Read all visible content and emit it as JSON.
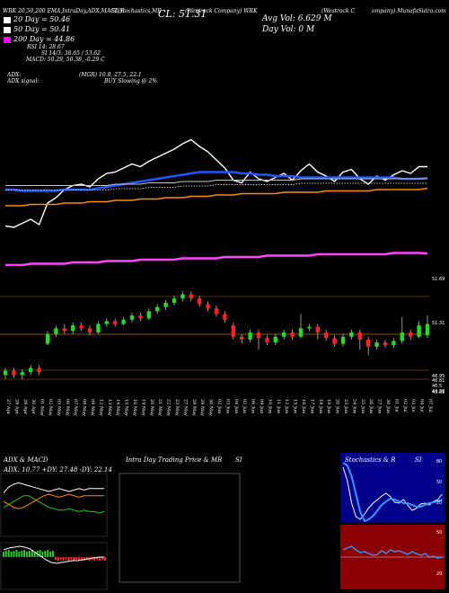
{
  "header": {
    "line1": "WRK 20,50,200 EMA,IntraDay,ADX,MACD,R",
    "line1b": "SI,Stochastics,MR",
    "ticker": "(Westrock Company) WRK",
    "close_label": "CL: 51.31",
    "company": "(Westrock C",
    "company_b": "ompany) MunafaSutra.com",
    "avg_vol": "Avg Vol: 6.629 M",
    "day_vol": "Day Vol: 0   M"
  },
  "legend": [
    {
      "label": "20  Day = 50.46",
      "color": "#ffffff"
    },
    {
      "label": "50  Day = 50.41",
      "color": "#ffffff"
    },
    {
      "label": "200  Day = 44.86",
      "color": "#ff00ff"
    }
  ],
  "stats": {
    "rsi_label": "RSI 14: 28.67",
    "stoch_label": "SI 14/3: 38.65 / 53.62",
    "macd_label": "MACD: 50.29, 50.38, -0.29  C",
    "adx_label": "ADX:",
    "adx_signal_label": "ADX  signal:",
    "mgr_label": "(MGR) 10.8,  27.5,  22.1",
    "buy_label": "BUY Slowing @ 2%"
  },
  "chart_data": {
    "type": "line",
    "title": "WRK 20,50,200 EMA,IntraDay,ADX,MACD,RSI,Stochastics,MRSI",
    "x": [
      "27 Apr",
      "28 Apr",
      "29 Apr",
      "30 Apr",
      "01 May",
      "02 May",
      "05 May",
      "06 May",
      "07 May",
      "08 May",
      "09 May",
      "12 May",
      "13 May",
      "14 May",
      "15 May",
      "16 May",
      "19 May",
      "20 May",
      "21 May",
      "22 May",
      "23 May",
      "27 May",
      "28 May",
      "29 May",
      "30 May",
      "02 Jun",
      "03 Jun",
      "04 Jun",
      "05 Jun",
      "06 Jun",
      "09 Jun",
      "10 Jun",
      "11 Jun",
      "12 Jun",
      "13 Jun",
      "16 Jun",
      "17 Jun",
      "18 Jun",
      "19 Jun",
      "20 Jun",
      "23 Jun",
      "24 Jun",
      "25 Jun",
      "26 Jun",
      "27 Jun",
      "30 Jun",
      "01 Jul",
      "02 Jul",
      "03 Jul",
      "04 Jul",
      "07 Jul"
    ],
    "series": [
      {
        "name": "Close",
        "values": [
          46.9,
          46.8,
          47.1,
          47.4,
          47.0,
          48.6,
          49.0,
          49.6,
          49.9,
          50.0,
          49.8,
          50.4,
          50.8,
          50.9,
          51.2,
          51.5,
          51.3,
          51.7,
          52.0,
          52.3,
          52.6,
          53.0,
          53.3,
          52.8,
          52.4,
          51.8,
          51.2,
          50.3,
          50.1,
          50.9,
          50.4,
          50.2,
          50.5,
          50.8,
          50.3,
          51.0,
          51.5,
          50.9,
          50.6,
          50.2,
          50.9,
          51.1,
          50.4,
          50.0,
          50.6,
          50.3,
          50.7,
          51.0,
          50.8,
          51.3,
          51.3
        ]
      },
      {
        "name": "20 Day",
        "values": [
          49.6,
          49.6,
          49.5,
          49.5,
          49.5,
          49.5,
          49.5,
          49.6,
          49.6,
          49.6,
          49.6,
          49.7,
          49.8,
          49.9,
          50.0,
          50.1,
          50.2,
          50.3,
          50.4,
          50.5,
          50.6,
          50.7,
          50.8,
          50.9,
          50.9,
          50.9,
          50.9,
          50.9,
          50.8,
          50.8,
          50.7,
          50.7,
          50.6,
          50.6,
          50.6,
          50.5,
          50.5,
          50.5,
          50.5,
          50.5,
          50.5,
          50.5,
          50.5,
          50.5,
          50.5,
          50.5,
          50.5,
          50.4,
          50.4,
          50.4,
          50.46
        ]
      },
      {
        "name": "50 Day",
        "values": [
          49.9,
          49.9,
          49.9,
          49.9,
          49.9,
          49.9,
          49.9,
          49.9,
          49.9,
          49.9,
          49.9,
          49.9,
          49.9,
          50.0,
          50.0,
          50.0,
          50.0,
          50.1,
          50.1,
          50.1,
          50.1,
          50.2,
          50.2,
          50.2,
          50.2,
          50.3,
          50.3,
          50.3,
          50.3,
          50.3,
          50.3,
          50.3,
          50.3,
          50.3,
          50.3,
          50.4,
          50.4,
          50.4,
          50.4,
          50.4,
          50.4,
          50.4,
          50.4,
          50.4,
          50.4,
          50.4,
          50.4,
          50.4,
          50.4,
          50.4,
          50.41
        ]
      },
      {
        "name": "100 Day",
        "values": [
          48.4,
          48.4,
          48.4,
          48.5,
          48.5,
          48.5,
          48.5,
          48.6,
          48.6,
          48.6,
          48.7,
          48.7,
          48.7,
          48.8,
          48.8,
          48.8,
          48.9,
          48.9,
          48.9,
          49.0,
          49.0,
          49.0,
          49.1,
          49.1,
          49.1,
          49.2,
          49.2,
          49.2,
          49.3,
          49.3,
          49.3,
          49.3,
          49.3,
          49.4,
          49.4,
          49.4,
          49.4,
          49.4,
          49.5,
          49.5,
          49.5,
          49.5,
          49.5,
          49.5,
          49.6,
          49.6,
          49.6,
          49.6,
          49.6,
          49.6,
          49.7
        ]
      },
      {
        "name": "200 Day",
        "values": [
          44.0,
          44.0,
          44.0,
          44.1,
          44.1,
          44.1,
          44.1,
          44.1,
          44.2,
          44.2,
          44.2,
          44.2,
          44.3,
          44.3,
          44.3,
          44.3,
          44.4,
          44.4,
          44.4,
          44.4,
          44.4,
          44.5,
          44.5,
          44.5,
          44.5,
          44.5,
          44.6,
          44.6,
          44.6,
          44.6,
          44.6,
          44.7,
          44.7,
          44.7,
          44.7,
          44.7,
          44.7,
          44.8,
          44.8,
          44.8,
          44.8,
          44.8,
          44.8,
          44.8,
          44.8,
          44.8,
          44.9,
          44.9,
          44.9,
          44.9,
          44.86
        ]
      }
    ],
    "ylim": [
      43.0,
      55.0
    ],
    "candles": [
      [
        46.3,
        46.6,
        46.0,
        46.8
      ],
      [
        46.6,
        46.3,
        46.1,
        46.8
      ],
      [
        46.3,
        46.5,
        46.0,
        46.7
      ],
      [
        46.5,
        46.8,
        46.3,
        47.0
      ],
      [
        46.8,
        46.5,
        46.3,
        47.0
      ],
      [
        48.5,
        49.2,
        48.4,
        49.4
      ],
      [
        49.2,
        49.6,
        49.0,
        49.8
      ],
      [
        49.6,
        49.4,
        49.2,
        49.9
      ],
      [
        49.4,
        49.8,
        49.2,
        50.0
      ],
      [
        49.8,
        49.6,
        49.4,
        50.0
      ],
      [
        49.6,
        49.3,
        49.1,
        49.8
      ],
      [
        49.3,
        49.9,
        49.2,
        50.1
      ],
      [
        49.9,
        50.1,
        49.7,
        50.3
      ],
      [
        50.1,
        49.9,
        49.7,
        50.3
      ],
      [
        49.9,
        50.2,
        49.8,
        50.4
      ],
      [
        50.2,
        50.5,
        50.0,
        50.7
      ],
      [
        50.5,
        50.3,
        50.1,
        50.7
      ],
      [
        50.3,
        50.8,
        50.2,
        51.0
      ],
      [
        50.8,
        51.1,
        50.6,
        51.3
      ],
      [
        51.1,
        51.4,
        50.9,
        51.6
      ],
      [
        51.4,
        51.7,
        51.2,
        51.9
      ],
      [
        51.7,
        52.0,
        51.5,
        52.2
      ],
      [
        52.0,
        51.7,
        51.5,
        52.2
      ],
      [
        51.7,
        51.3,
        51.1,
        51.9
      ],
      [
        51.3,
        51.0,
        50.8,
        51.5
      ],
      [
        51.0,
        50.6,
        50.4,
        51.2
      ],
      [
        50.6,
        50.2,
        50.0,
        50.8
      ],
      [
        49.8,
        49.0,
        48.8,
        50.0
      ],
      [
        49.0,
        48.8,
        48.5,
        49.2
      ],
      [
        48.8,
        49.3,
        48.6,
        49.5
      ],
      [
        49.3,
        48.9,
        48.1,
        49.5
      ],
      [
        48.9,
        48.6,
        48.4,
        49.1
      ],
      [
        48.6,
        49.0,
        48.4,
        49.2
      ],
      [
        49.0,
        49.3,
        48.8,
        49.5
      ],
      [
        49.3,
        49.0,
        48.8,
        49.5
      ],
      [
        49.0,
        49.6,
        48.9,
        50.6
      ],
      [
        49.6,
        49.7,
        49.4,
        49.9
      ],
      [
        49.7,
        49.3,
        48.8,
        49.9
      ],
      [
        49.3,
        48.9,
        48.7,
        49.5
      ],
      [
        48.9,
        48.5,
        48.3,
        49.1
      ],
      [
        48.5,
        49.0,
        48.3,
        49.2
      ],
      [
        49.0,
        49.3,
        48.8,
        49.5
      ],
      [
        49.3,
        48.8,
        48.1,
        49.5
      ],
      [
        48.8,
        48.3,
        47.7,
        49.0
      ],
      [
        48.3,
        48.6,
        48.1,
        48.8
      ],
      [
        48.6,
        48.4,
        48.2,
        48.8
      ],
      [
        48.4,
        48.7,
        48.2,
        48.9
      ],
      [
        48.7,
        49.3,
        48.5,
        50.4
      ],
      [
        49.3,
        49.0,
        48.8,
        49.5
      ],
      [
        49.0,
        49.8,
        48.9,
        50.1
      ],
      [
        49.1,
        49.9,
        48.9,
        50.5
      ]
    ],
    "price_labels": [
      "51.69",
      "51.31",
      "46.95",
      "46.81",
      "46.01",
      "46.5",
      "44.28"
    ],
    "panels": {
      "adx": {
        "title": "ADX  & MACD",
        "values_text": "ADX: 10.77  +DY: 27.48  -DY: 22.14"
      },
      "intraday": {
        "title": "Intra  Day Trading Price  & MR",
        "title_b": "SI"
      },
      "stoch": {
        "title": "Stochastics & R",
        "title_b": "SI",
        "levels": [
          "80",
          "50",
          "20"
        ],
        "rsi_levels": [
          "50",
          "20"
        ]
      }
    }
  }
}
